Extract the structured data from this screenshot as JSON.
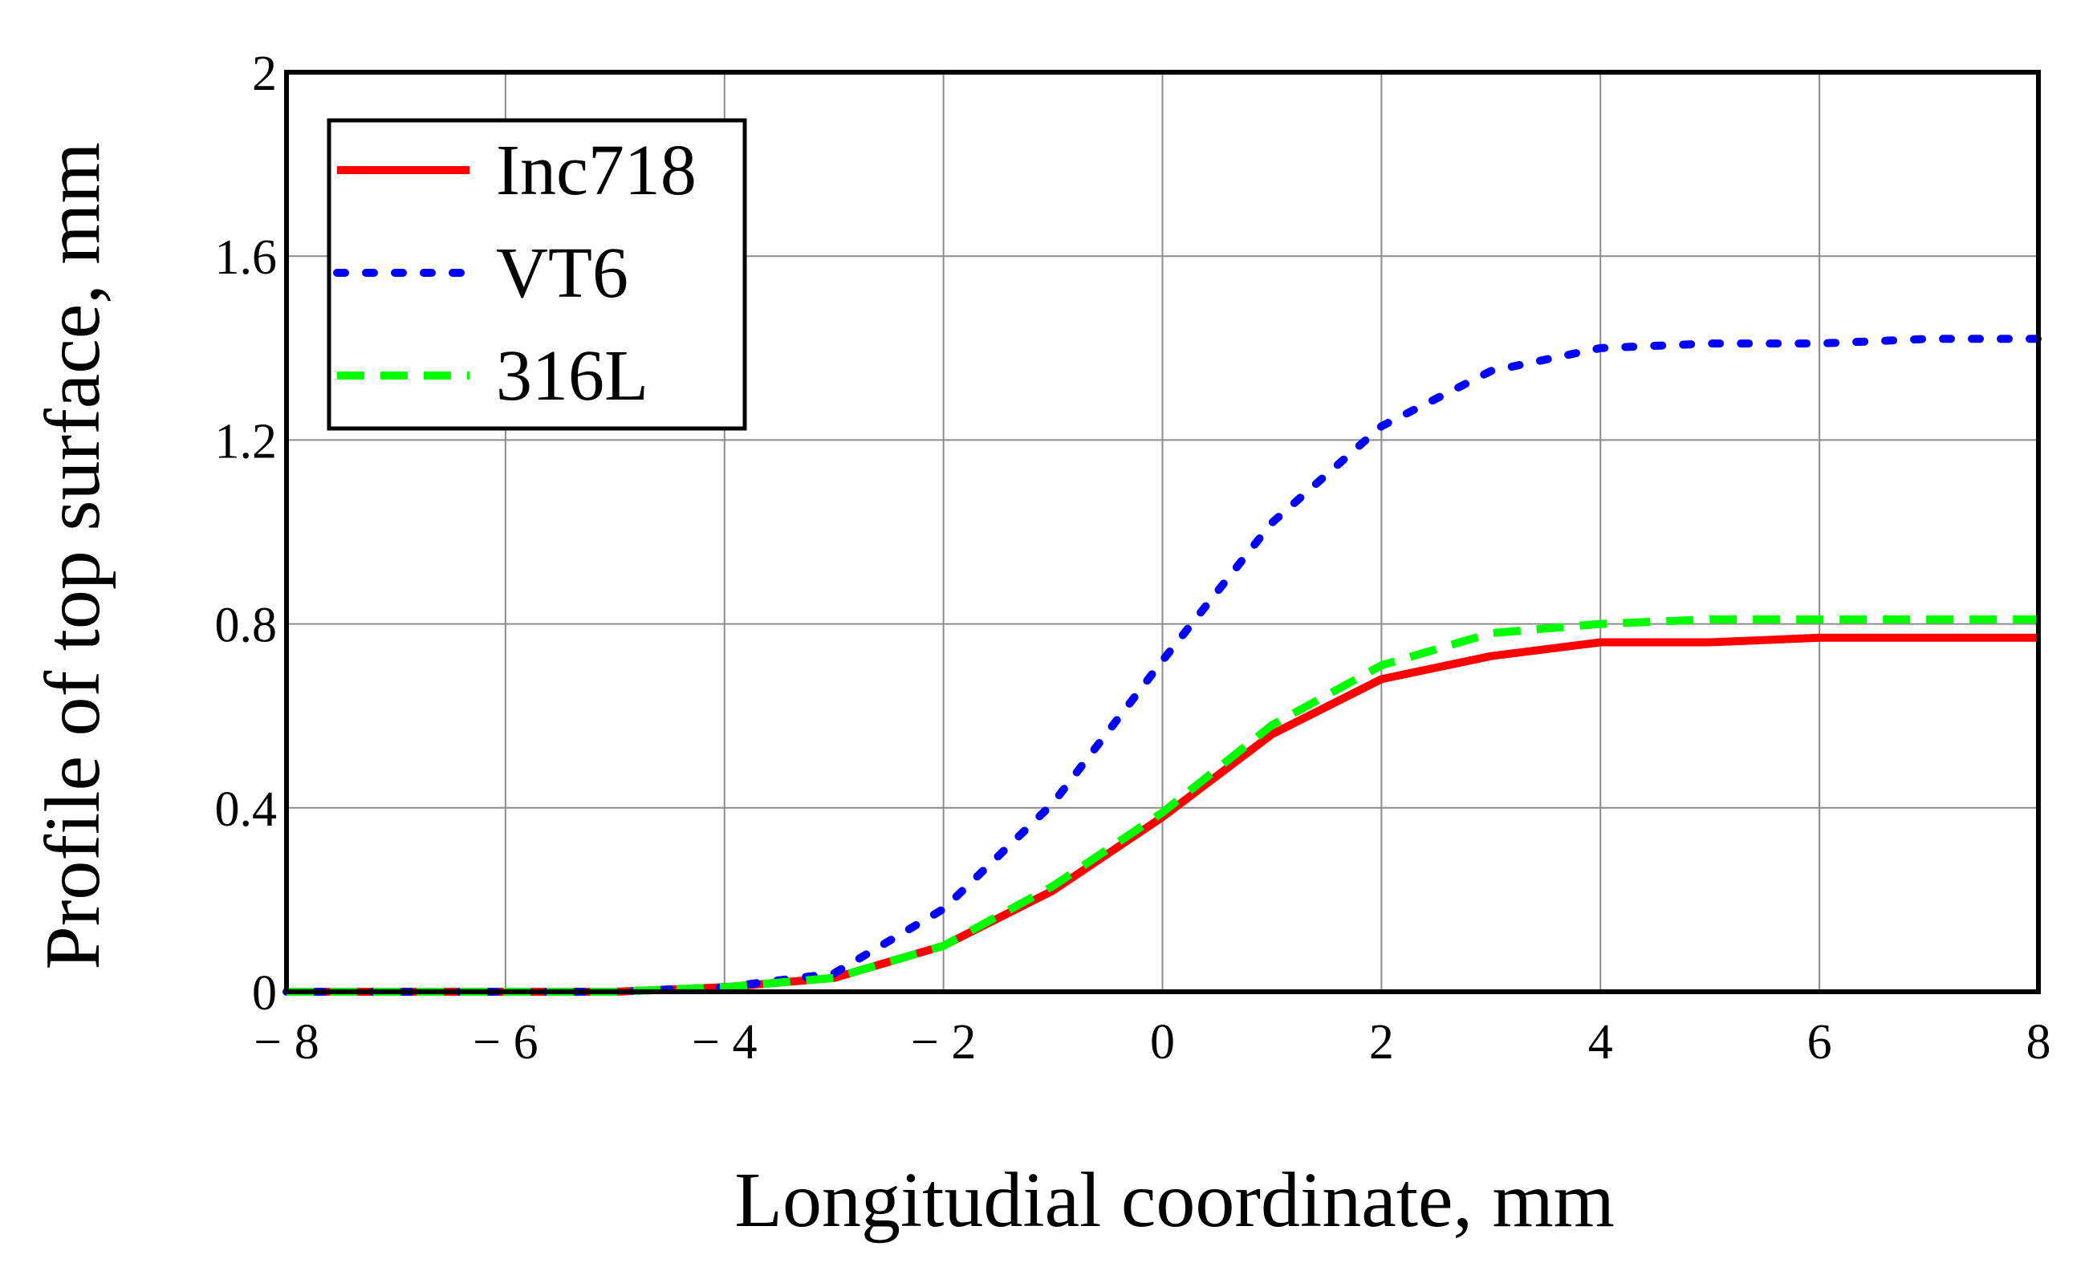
{
  "chart_data": {
    "type": "line",
    "title": "",
    "xlabel": "Longitudial coordinate, mm",
    "ylabel": "Profile of top surface, mm",
    "xlim": [
      -8,
      8
    ],
    "ylim": [
      0,
      2
    ],
    "xticks": [
      -8,
      -6,
      -4,
      -2,
      0,
      2,
      4,
      6,
      8
    ],
    "xtick_labels": [
      "− 8",
      "− 6",
      "− 4",
      "− 2",
      "0",
      "2",
      "4",
      "6",
      "8"
    ],
    "yticks": [
      0,
      0.4,
      0.8,
      1.2,
      1.6,
      2
    ],
    "ytick_labels": [
      "0",
      "0.4",
      "0.8",
      "1.2",
      "1.6",
      "2"
    ],
    "grid": true,
    "legend_position": "top-left",
    "x": [
      -8,
      -7,
      -6,
      -5,
      -4,
      -3,
      -2,
      -1,
      0,
      1,
      2,
      3,
      4,
      5,
      6,
      7,
      8
    ],
    "series": [
      {
        "name": "Inc718",
        "color": "#ff0000",
        "style": "solid",
        "values": [
          0,
          0,
          0,
          0,
          0.01,
          0.03,
          0.1,
          0.22,
          0.38,
          0.56,
          0.68,
          0.73,
          0.76,
          0.76,
          0.77,
          0.77,
          0.77
        ]
      },
      {
        "name": "VT6",
        "color": "#0000ff",
        "style": "dotted",
        "values": [
          0,
          0,
          0,
          0,
          0.01,
          0.04,
          0.18,
          0.41,
          0.72,
          1.02,
          1.23,
          1.35,
          1.4,
          1.41,
          1.41,
          1.42,
          1.42
        ]
      },
      {
        "name": "316L",
        "color": "#00ff00",
        "style": "dashed",
        "values": [
          0,
          0,
          0,
          0,
          0.01,
          0.03,
          0.1,
          0.23,
          0.39,
          0.58,
          0.71,
          0.78,
          0.8,
          0.81,
          0.81,
          0.81,
          0.81
        ]
      }
    ]
  }
}
